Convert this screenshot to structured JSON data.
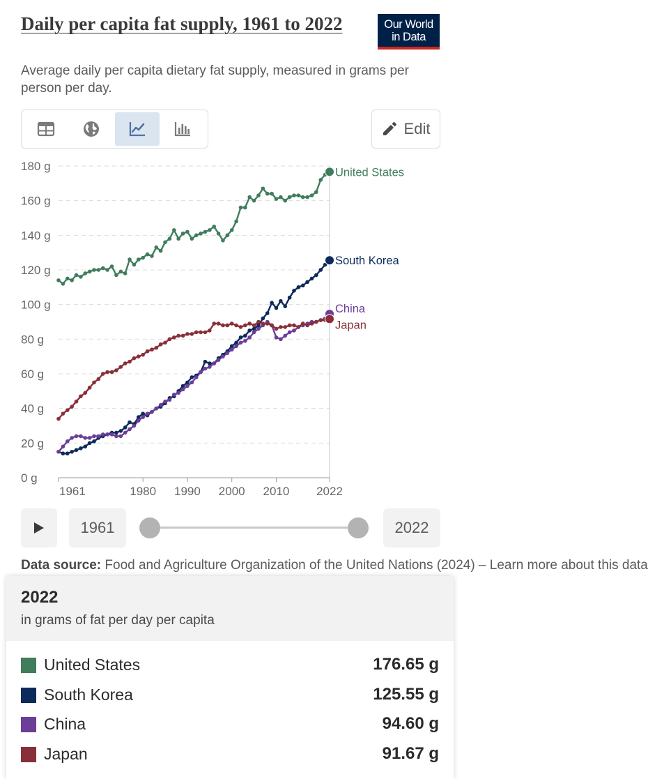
{
  "header": {
    "title": "Daily per capita fat supply, 1961 to 2022",
    "subtitle": "Average daily per capita dietary fat supply, measured in grams per person per day.",
    "logo_line1": "Our World",
    "logo_line2": "in Data",
    "edit_label": "Edit"
  },
  "tabs": [
    {
      "name": "table-icon"
    },
    {
      "name": "globe-icon"
    },
    {
      "name": "line-chart-icon",
      "active": true
    },
    {
      "name": "bar-chart-icon"
    }
  ],
  "timeline": {
    "start_label": "1961",
    "end_label": "2022",
    "range": [
      1961,
      2022
    ]
  },
  "source": {
    "label": "Data source:",
    "text": "Food and Agriculture Organization of the United Nations (2024) – Learn more about this data"
  },
  "tooltip": {
    "year": "2022",
    "unit": "in grams of fat per day per capita",
    "rows": [
      {
        "name": "United States",
        "value": "176.65 g",
        "color": "#3f7d5d"
      },
      {
        "name": "South Korea",
        "value": "125.55 g",
        "color": "#0e2a5a"
      },
      {
        "name": "China",
        "value": "94.60 g",
        "color": "#6c3d99"
      },
      {
        "name": "Japan",
        "value": "91.67 g",
        "color": "#883039"
      }
    ]
  },
  "chart_data": {
    "type": "line",
    "ylim": [
      0,
      180
    ],
    "xlim": [
      1961,
      2022
    ],
    "yticks": [
      0,
      20,
      40,
      60,
      80,
      100,
      120,
      140,
      160,
      180
    ],
    "ytick_labels": [
      "0 g",
      "20 g",
      "40 g",
      "60 g",
      "80 g",
      "100 g",
      "120 g",
      "140 g",
      "160 g",
      "180 g"
    ],
    "xticks": [
      1961,
      1980,
      1990,
      2000,
      2010,
      2022
    ],
    "xtick_labels": [
      "1961",
      "1980",
      "1990",
      "2000",
      "2010",
      "2022"
    ],
    "grid": "horizontal-dashed",
    "legend": "line-end labels",
    "series": [
      {
        "name": "United States",
        "color": "#3f7d5d",
        "label_offset": 0,
        "points": [
          [
            1961,
            114
          ],
          [
            1962,
            112
          ],
          [
            1963,
            115
          ],
          [
            1964,
            114
          ],
          [
            1965,
            117
          ],
          [
            1966,
            116
          ],
          [
            1967,
            118
          ],
          [
            1968,
            119
          ],
          [
            1969,
            120
          ],
          [
            1970,
            120
          ],
          [
            1971,
            121
          ],
          [
            1972,
            120
          ],
          [
            1973,
            122
          ],
          [
            1974,
            117
          ],
          [
            1975,
            119
          ],
          [
            1976,
            118
          ],
          [
            1977,
            126
          ],
          [
            1978,
            123
          ],
          [
            1979,
            126
          ],
          [
            1980,
            127
          ],
          [
            1981,
            129
          ],
          [
            1982,
            128
          ],
          [
            1983,
            133
          ],
          [
            1984,
            131
          ],
          [
            1985,
            136
          ],
          [
            1986,
            138
          ],
          [
            1987,
            143
          ],
          [
            1988,
            138
          ],
          [
            1989,
            141
          ],
          [
            1990,
            142
          ],
          [
            1991,
            138
          ],
          [
            1992,
            140
          ],
          [
            1993,
            141
          ],
          [
            1994,
            142
          ],
          [
            1995,
            143
          ],
          [
            1996,
            145
          ],
          [
            1997,
            141
          ],
          [
            1998,
            137
          ],
          [
            1999,
            140
          ],
          [
            2000,
            143
          ],
          [
            2001,
            148
          ],
          [
            2002,
            156
          ],
          [
            2003,
            156
          ],
          [
            2004,
            162
          ],
          [
            2005,
            160
          ],
          [
            2006,
            163
          ],
          [
            2007,
            167
          ],
          [
            2008,
            164
          ],
          [
            2009,
            164
          ],
          [
            2010,
            161
          ],
          [
            2011,
            162
          ],
          [
            2012,
            160
          ],
          [
            2013,
            162
          ],
          [
            2014,
            163
          ],
          [
            2015,
            163
          ],
          [
            2016,
            162
          ],
          [
            2017,
            162
          ],
          [
            2018,
            163
          ],
          [
            2019,
            165
          ],
          [
            2020,
            172
          ],
          [
            2021,
            175
          ],
          [
            2022,
            176.65
          ]
        ]
      },
      {
        "name": "South Korea",
        "color": "#0e2a5a",
        "label_offset": 0,
        "points": [
          [
            1961,
            15
          ],
          [
            1962,
            14
          ],
          [
            1963,
            14
          ],
          [
            1964,
            15
          ],
          [
            1965,
            16
          ],
          [
            1966,
            17
          ],
          [
            1967,
            18
          ],
          [
            1968,
            20
          ],
          [
            1969,
            21
          ],
          [
            1970,
            23
          ],
          [
            1971,
            24
          ],
          [
            1972,
            25
          ],
          [
            1973,
            26
          ],
          [
            1974,
            26
          ],
          [
            1975,
            27
          ],
          [
            1976,
            29
          ],
          [
            1977,
            32
          ],
          [
            1978,
            31
          ],
          [
            1979,
            35
          ],
          [
            1980,
            37
          ],
          [
            1981,
            36
          ],
          [
            1982,
            38
          ],
          [
            1983,
            40
          ],
          [
            1984,
            41
          ],
          [
            1985,
            43
          ],
          [
            1986,
            46
          ],
          [
            1987,
            47
          ],
          [
            1988,
            50
          ],
          [
            1989,
            53
          ],
          [
            1990,
            55
          ],
          [
            1991,
            58
          ],
          [
            1992,
            59
          ],
          [
            1993,
            61
          ],
          [
            1994,
            67
          ],
          [
            1995,
            66
          ],
          [
            1996,
            66
          ],
          [
            1997,
            69
          ],
          [
            1998,
            71
          ],
          [
            1999,
            73
          ],
          [
            2000,
            76
          ],
          [
            2001,
            78
          ],
          [
            2002,
            81
          ],
          [
            2003,
            82
          ],
          [
            2004,
            85
          ],
          [
            2005,
            86
          ],
          [
            2006,
            88
          ],
          [
            2007,
            92
          ],
          [
            2008,
            95
          ],
          [
            2009,
            101
          ],
          [
            2010,
            98
          ],
          [
            2011,
            102
          ],
          [
            2012,
            99
          ],
          [
            2013,
            104
          ],
          [
            2014,
            108
          ],
          [
            2015,
            110
          ],
          [
            2016,
            111
          ],
          [
            2017,
            113
          ],
          [
            2018,
            115
          ],
          [
            2019,
            117
          ],
          [
            2020,
            120
          ],
          [
            2021,
            123
          ],
          [
            2022,
            125.55
          ]
        ]
      },
      {
        "name": "China",
        "color": "#6c3d99",
        "label_offset": -8,
        "points": [
          [
            1961,
            15
          ],
          [
            1962,
            18
          ],
          [
            1963,
            21
          ],
          [
            1964,
            23
          ],
          [
            1965,
            24
          ],
          [
            1966,
            24
          ],
          [
            1967,
            23
          ],
          [
            1968,
            23
          ],
          [
            1969,
            24
          ],
          [
            1970,
            24
          ],
          [
            1971,
            25
          ],
          [
            1972,
            25
          ],
          [
            1973,
            25
          ],
          [
            1974,
            24
          ],
          [
            1975,
            24
          ],
          [
            1976,
            26
          ],
          [
            1977,
            28
          ],
          [
            1978,
            30
          ],
          [
            1979,
            33
          ],
          [
            1980,
            35
          ],
          [
            1981,
            37
          ],
          [
            1982,
            38
          ],
          [
            1983,
            40
          ],
          [
            1984,
            42
          ],
          [
            1985,
            44
          ],
          [
            1986,
            45
          ],
          [
            1987,
            48
          ],
          [
            1988,
            49
          ],
          [
            1989,
            51
          ],
          [
            1990,
            53
          ],
          [
            1991,
            55
          ],
          [
            1992,
            58
          ],
          [
            1993,
            61
          ],
          [
            1994,
            63
          ],
          [
            1995,
            64
          ],
          [
            1996,
            66
          ],
          [
            1997,
            68
          ],
          [
            1998,
            70
          ],
          [
            1999,
            72
          ],
          [
            2000,
            74
          ],
          [
            2001,
            76
          ],
          [
            2002,
            78
          ],
          [
            2003,
            79
          ],
          [
            2004,
            81
          ],
          [
            2005,
            84
          ],
          [
            2006,
            86
          ],
          [
            2007,
            88
          ],
          [
            2008,
            90
          ],
          [
            2009,
            88
          ],
          [
            2010,
            81
          ],
          [
            2011,
            80
          ],
          [
            2012,
            82
          ],
          [
            2013,
            84
          ],
          [
            2014,
            85
          ],
          [
            2015,
            87
          ],
          [
            2016,
            88
          ],
          [
            2017,
            89
          ],
          [
            2018,
            90
          ],
          [
            2019,
            90
          ],
          [
            2020,
            91
          ],
          [
            2021,
            92
          ],
          [
            2022,
            94.6
          ]
        ]
      },
      {
        "name": "Japan",
        "color": "#883039",
        "label_offset": 8,
        "points": [
          [
            1961,
            34
          ],
          [
            1962,
            37
          ],
          [
            1963,
            39
          ],
          [
            1964,
            41
          ],
          [
            1965,
            44
          ],
          [
            1966,
            47
          ],
          [
            1967,
            49
          ],
          [
            1968,
            52
          ],
          [
            1969,
            55
          ],
          [
            1970,
            57
          ],
          [
            1971,
            60
          ],
          [
            1972,
            61
          ],
          [
            1973,
            61
          ],
          [
            1974,
            62
          ],
          [
            1975,
            64
          ],
          [
            1976,
            66
          ],
          [
            1977,
            67
          ],
          [
            1978,
            69
          ],
          [
            1979,
            70
          ],
          [
            1980,
            71
          ],
          [
            1981,
            73
          ],
          [
            1982,
            74
          ],
          [
            1983,
            75
          ],
          [
            1984,
            77
          ],
          [
            1985,
            78
          ],
          [
            1986,
            80
          ],
          [
            1987,
            81
          ],
          [
            1988,
            82
          ],
          [
            1989,
            82
          ],
          [
            1990,
            83
          ],
          [
            1991,
            83
          ],
          [
            1992,
            84
          ],
          [
            1993,
            84
          ],
          [
            1994,
            84
          ],
          [
            1995,
            85
          ],
          [
            1996,
            89
          ],
          [
            1997,
            89
          ],
          [
            1998,
            88
          ],
          [
            1999,
            88
          ],
          [
            2000,
            89
          ],
          [
            2001,
            88
          ],
          [
            2002,
            87
          ],
          [
            2003,
            88
          ],
          [
            2004,
            89
          ],
          [
            2005,
            88
          ],
          [
            2006,
            90
          ],
          [
            2007,
            89
          ],
          [
            2008,
            89
          ],
          [
            2009,
            88
          ],
          [
            2010,
            86
          ],
          [
            2011,
            87
          ],
          [
            2012,
            87
          ],
          [
            2013,
            88
          ],
          [
            2014,
            88
          ],
          [
            2015,
            87
          ],
          [
            2016,
            89
          ],
          [
            2017,
            88
          ],
          [
            2018,
            89
          ],
          [
            2019,
            90
          ],
          [
            2020,
            91
          ],
          [
            2021,
            91
          ],
          [
            2022,
            91.67
          ]
        ]
      }
    ]
  }
}
